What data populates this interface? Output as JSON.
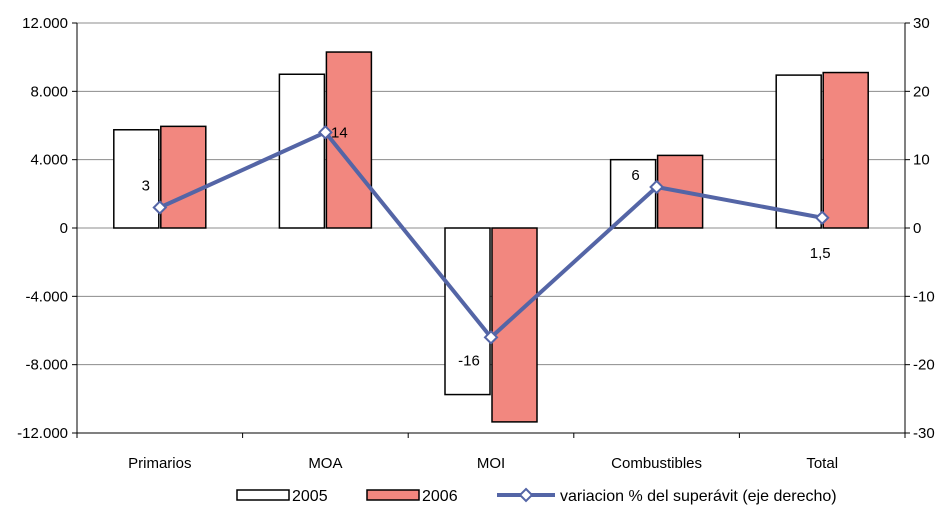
{
  "chart_data": {
    "type": "bar",
    "categories": [
      "Primarios",
      "MOA",
      "MOI",
      "Combustibles",
      "Total"
    ],
    "left_axis": {
      "ylim": [
        -12000,
        12000
      ],
      "ticks": [
        -12000,
        -8000,
        -4000,
        0,
        4000,
        8000,
        12000
      ],
      "tick_labels": [
        "-12.000",
        "-8.000",
        "-4.000",
        "0",
        "4.000",
        "8.000",
        "12.000"
      ]
    },
    "right_axis": {
      "ylim": [
        -30,
        30
      ],
      "ticks": [
        -30,
        -20,
        -10,
        0,
        10,
        20,
        30
      ],
      "tick_labels": [
        "-30",
        "-20",
        "-10",
        "0",
        "10",
        "20",
        "30"
      ]
    },
    "grid": true,
    "legend_position": "bottom",
    "series": [
      {
        "name": "2005",
        "kind": "bar",
        "axis": "left",
        "color": "#ffffff",
        "stroke": "#000000",
        "values": [
          5750,
          9000,
          -9750,
          4000,
          8950
        ]
      },
      {
        "name": "2006",
        "kind": "bar",
        "axis": "left",
        "color": "#f2877f",
        "stroke": "#000000",
        "values": [
          5950,
          10300,
          -11350,
          4250,
          9100
        ]
      },
      {
        "name": "variacion % del superávit (eje derecho)",
        "kind": "line",
        "axis": "right",
        "color": "#5465a6",
        "values": [
          3,
          14,
          -16,
          6,
          1.5
        ],
        "labels": [
          "3",
          "14",
          "-16",
          "6",
          "1,5"
        ]
      }
    ]
  }
}
